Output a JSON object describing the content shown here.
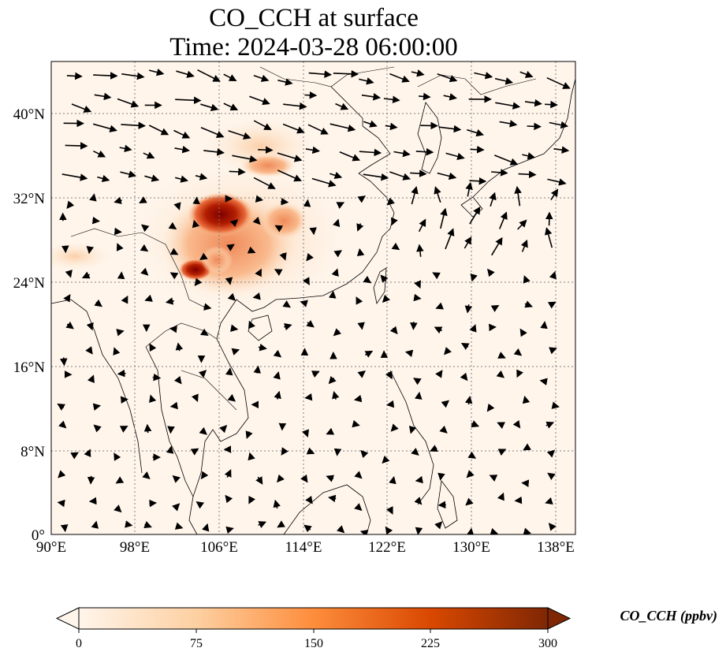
{
  "title": {
    "line1": "CO_CCH at surface",
    "line2": "Time: 2024-03-28 06:00:00"
  },
  "map": {
    "lon_range": [
      90,
      139
    ],
    "lat_range": [
      0,
      45
    ],
    "gridlines": "dotted",
    "lon_ticks": [
      "90°E",
      "98°E",
      "106°E",
      "114°E",
      "122°E",
      "130°E",
      "138°E"
    ],
    "lat_ticks": [
      "0°",
      "8°N",
      "16°N",
      "24°N",
      "32°N",
      "40°N"
    ],
    "field": "CO_CCH concentration (shaded) with surface wind vectors",
    "colormap": [
      "#fff5eb",
      "#fdd0a2",
      "#fd8d3c",
      "#d94801",
      "#7f2704"
    ]
  },
  "colorbar": {
    "label": "CO_CCH (ppbv)",
    "min": 0,
    "max": 300,
    "ticks": [
      "0",
      "75",
      "150",
      "225",
      "300"
    ],
    "extend": "both"
  }
}
